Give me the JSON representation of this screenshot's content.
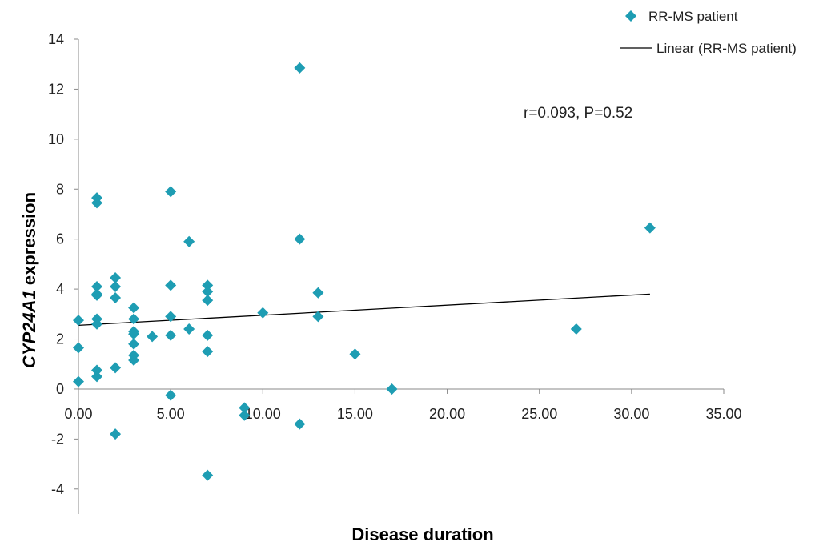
{
  "chart_data": {
    "type": "scatter",
    "xlabel": "Disease duration",
    "ylabel_italic": "CYP24A1",
    "ylabel_rest": " expression",
    "xlim": [
      0,
      35
    ],
    "ylim": [
      -5,
      14
    ],
    "x_ticks": [
      0,
      5,
      10,
      15,
      20,
      25,
      30,
      35
    ],
    "x_tick_labels": [
      "0.00",
      "5.00",
      "10.00",
      "15.00",
      "20.00",
      "25.00",
      "30.00",
      "35.00"
    ],
    "y_ticks": [
      -4,
      -2,
      0,
      2,
      4,
      6,
      8,
      10,
      12,
      14
    ],
    "y_tick_labels": [
      "-4",
      "-2",
      "0",
      "2",
      "4",
      "6",
      "8",
      "10",
      "12",
      "14"
    ],
    "grid": false,
    "legend_position": "top-right",
    "annotation": "r=0.093,  P=0.52",
    "colors": {
      "marker": "#1e9db3",
      "trend": "#000000"
    },
    "series": [
      {
        "name": "RR-MS patient",
        "kind": "scatter",
        "marker": "diamond",
        "points": [
          [
            0,
            2.75
          ],
          [
            0,
            1.65
          ],
          [
            0,
            0.3
          ],
          [
            1,
            7.65
          ],
          [
            1,
            7.45
          ],
          [
            1,
            4.1
          ],
          [
            1,
            3.8
          ],
          [
            1,
            3.75
          ],
          [
            1,
            2.8
          ],
          [
            1,
            2.6
          ],
          [
            1,
            0.75
          ],
          [
            1,
            0.5
          ],
          [
            2,
            4.45
          ],
          [
            2,
            4.1
          ],
          [
            2,
            3.65
          ],
          [
            2,
            0.85
          ],
          [
            2,
            -1.8
          ],
          [
            3,
            3.25
          ],
          [
            3,
            2.8
          ],
          [
            3,
            2.3
          ],
          [
            3,
            2.2
          ],
          [
            3,
            1.8
          ],
          [
            3,
            1.35
          ],
          [
            3,
            1.15
          ],
          [
            4,
            2.1
          ],
          [
            5,
            7.9
          ],
          [
            5,
            4.15
          ],
          [
            5,
            2.9
          ],
          [
            5,
            2.15
          ],
          [
            5,
            -0.25
          ],
          [
            6,
            5.9
          ],
          [
            6,
            2.4
          ],
          [
            7,
            4.15
          ],
          [
            7,
            3.9
          ],
          [
            7,
            3.55
          ],
          [
            7,
            2.15
          ],
          [
            7,
            1.5
          ],
          [
            7,
            -3.45
          ],
          [
            9,
            -0.75
          ],
          [
            9,
            -1.05
          ],
          [
            10,
            3.05
          ],
          [
            12,
            12.85
          ],
          [
            12,
            6.0
          ],
          [
            12,
            -1.4
          ],
          [
            13,
            3.85
          ],
          [
            13,
            2.9
          ],
          [
            15,
            1.4
          ],
          [
            17,
            0.0
          ],
          [
            27,
            2.4
          ],
          [
            31,
            6.45
          ]
        ]
      },
      {
        "name": "Linear (RR-MS patient)",
        "kind": "trendline",
        "points": [
          [
            0,
            2.55
          ],
          [
            31,
            3.8
          ]
        ]
      }
    ]
  }
}
